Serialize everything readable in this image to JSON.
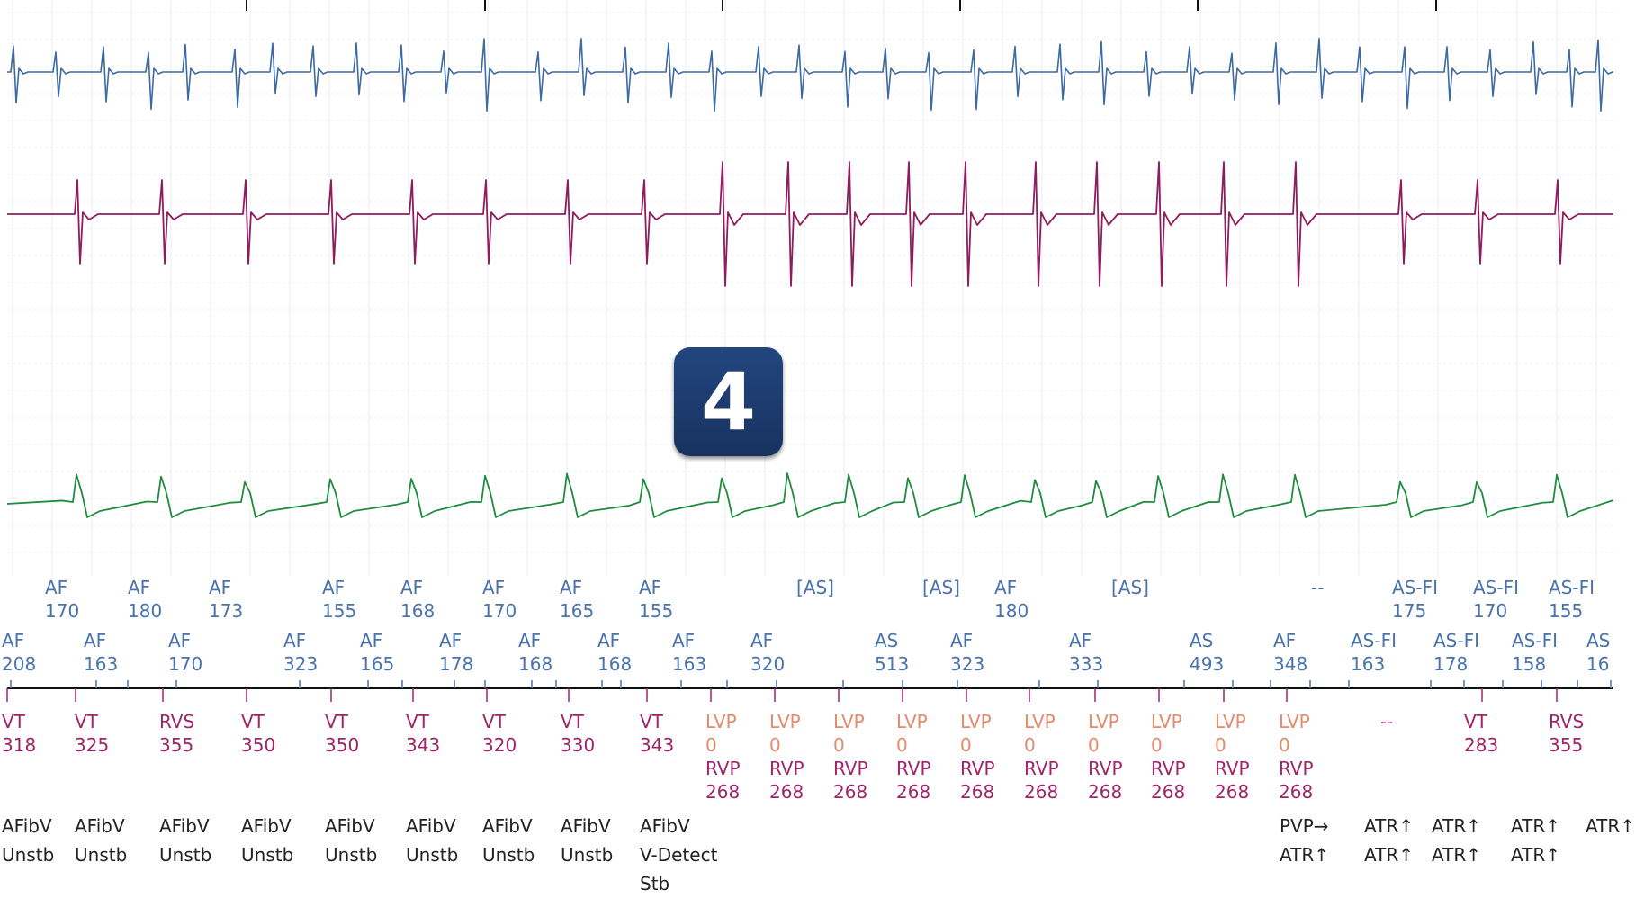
{
  "badge": {
    "label": "4"
  },
  "colors": {
    "channel_1": "#3d6aa3",
    "channel_2": "#8e1c5e",
    "channel_3": "#1f8c3f",
    "atrial_markers": "#4a73ad",
    "ventricular_markers": "#a0246a",
    "lv_pace_markers": "#e38b6a",
    "diagnosis_text": "#222222",
    "badge": "#1e3d70"
  },
  "marker_rows": {
    "atrial_top": [
      {
        "l1": "AF",
        "l2": "170"
      },
      {
        "l1": "AF",
        "l2": "180"
      },
      {
        "l1": "AF",
        "l2": "173"
      },
      {
        "l1": "AF",
        "l2": "155"
      },
      {
        "l1": "AF",
        "l2": "168"
      },
      {
        "l1": "AF",
        "l2": "170"
      },
      {
        "l1": "AF",
        "l2": "165"
      },
      {
        "l1": "AF",
        "l2": "155"
      },
      {
        "l1": "[AS]",
        "l2": ""
      },
      {
        "l1": "[AS]",
        "l2": ""
      },
      {
        "l1": "AF",
        "l2": "180"
      },
      {
        "l1": "[AS]",
        "l2": ""
      },
      {
        "l1": "--",
        "l2": ""
      },
      {
        "l1": "AS-FI",
        "l2": "175"
      },
      {
        "l1": "AS-FI",
        "l2": "170"
      },
      {
        "l1": "AS-FI",
        "l2": "155"
      }
    ],
    "atrial_bottom": [
      {
        "l1": "AF",
        "l2": "208"
      },
      {
        "l1": "AF",
        "l2": "163"
      },
      {
        "l1": "AF",
        "l2": "170"
      },
      {
        "l1": "AF",
        "l2": "323"
      },
      {
        "l1": "AF",
        "l2": "165"
      },
      {
        "l1": "AF",
        "l2": "178"
      },
      {
        "l1": "AF",
        "l2": "168"
      },
      {
        "l1": "AF",
        "l2": "168"
      },
      {
        "l1": "AF",
        "l2": "163"
      },
      {
        "l1": "AF",
        "l2": "320"
      },
      {
        "l1": "AS",
        "l2": "513"
      },
      {
        "l1": "AF",
        "l2": "323"
      },
      {
        "l1": "AF",
        "l2": "333"
      },
      {
        "l1": "AS",
        "l2": "493"
      },
      {
        "l1": "AF",
        "l2": "348"
      },
      {
        "l1": "AS-FI",
        "l2": "163"
      },
      {
        "l1": "AS-FI",
        "l2": "178"
      },
      {
        "l1": "AS-FI",
        "l2": "158"
      },
      {
        "l1": "AS",
        "l2": "16"
      }
    ],
    "ventricular": [
      {
        "l1": "VT",
        "l2": "318"
      },
      {
        "l1": "VT",
        "l2": "325"
      },
      {
        "l1": "RVS",
        "l2": "355"
      },
      {
        "l1": "VT",
        "l2": "350"
      },
      {
        "l1": "VT",
        "l2": "350"
      },
      {
        "l1": "VT",
        "l2": "343"
      },
      {
        "l1": "VT",
        "l2": "320"
      },
      {
        "l1": "VT",
        "l2": "330"
      },
      {
        "l1": "VT",
        "l2": "343"
      },
      {
        "l1": "LVP",
        "l2": "0",
        "l3": "RVP",
        "l4": "268"
      },
      {
        "l1": "LVP",
        "l2": "0",
        "l3": "RVP",
        "l4": "268"
      },
      {
        "l1": "LVP",
        "l2": "0",
        "l3": "RVP",
        "l4": "268"
      },
      {
        "l1": "LVP",
        "l2": "0",
        "l3": "RVP",
        "l4": "268"
      },
      {
        "l1": "LVP",
        "l2": "0",
        "l3": "RVP",
        "l4": "268"
      },
      {
        "l1": "LVP",
        "l2": "0",
        "l3": "RVP",
        "l4": "268"
      },
      {
        "l1": "LVP",
        "l2": "0",
        "l3": "RVP",
        "l4": "268"
      },
      {
        "l1": "LVP",
        "l2": "0",
        "l3": "RVP",
        "l4": "268"
      },
      {
        "l1": "LVP",
        "l2": "0",
        "l3": "RVP",
        "l4": "268"
      },
      {
        "l1": "LVP",
        "l2": "0",
        "l3": "RVP",
        "l4": "268"
      },
      {
        "l1": "--",
        "l2": ""
      },
      {
        "l1": "VT",
        "l2": "283"
      },
      {
        "l1": "RVS",
        "l2": "355"
      }
    ],
    "diagnosis": [
      {
        "l1": "AFibV",
        "l2": "Unstb"
      },
      {
        "l1": "AFibV",
        "l2": "Unstb"
      },
      {
        "l1": "AFibV",
        "l2": "Unstb"
      },
      {
        "l1": "AFibV",
        "l2": "Unstb"
      },
      {
        "l1": "AFibV",
        "l2": "Unstb"
      },
      {
        "l1": "AFibV",
        "l2": "Unstb"
      },
      {
        "l1": "AFibV",
        "l2": "Unstb"
      },
      {
        "l1": "AFibV",
        "l2": "Unstb"
      },
      {
        "l1": "AFibV",
        "l2": "V-Detect",
        "l3": "Stb"
      },
      {
        "l1": "PVP→",
        "l2": "ATR↑"
      },
      {
        "l1": "ATR↑",
        "l2": "ATR↑"
      },
      {
        "l1": "ATR↑",
        "l2": "ATR↑"
      },
      {
        "l1": "ATR↑",
        "l2": "ATR↑"
      },
      {
        "l1": "ATR↑",
        "l2": ""
      }
    ]
  }
}
